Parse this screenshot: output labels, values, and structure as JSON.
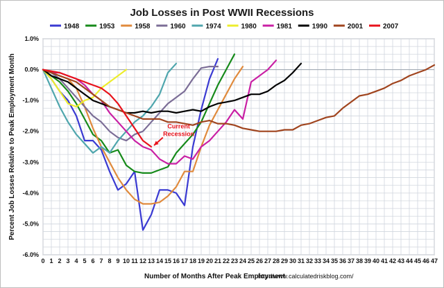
{
  "chart_data": {
    "type": "line",
    "title": "Job Losses in Post WWII Recessions",
    "xlabel": "Number of Months After Peak Employment",
    "ylabel": "Percent Job Losses Relative to Peak Employment Month",
    "source": "http://www.calculatedriskblog.com/",
    "annotation": "Current Recession",
    "annotation_lines": [
      "Current",
      "Recession"
    ],
    "xlim": [
      0,
      47
    ],
    "ylim": [
      -6.0,
      1.0
    ],
    "x_ticks": [
      "0",
      "1",
      "2",
      "3",
      "4",
      "5",
      "6",
      "7",
      "8",
      "9",
      "10",
      "11",
      "12",
      "13",
      "14",
      "15",
      "16",
      "17",
      "18",
      "19",
      "20",
      "21",
      "22",
      "23",
      "24",
      "25",
      "26",
      "27",
      "28",
      "29",
      "30",
      "31",
      "32",
      "33",
      "34",
      "35",
      "36",
      "37",
      "38",
      "39",
      "40",
      "41",
      "42",
      "43",
      "44",
      "45",
      "46",
      "47"
    ],
    "y_ticks": [
      "1.0%",
      "0.0%",
      "-1.0%",
      "-2.0%",
      "-3.0%",
      "-4.0%",
      "-5.0%",
      "-6.0%"
    ],
    "y_tick_values": [
      1.0,
      0.0,
      -1.0,
      -2.0,
      -3.0,
      -4.0,
      -5.0,
      -6.0
    ],
    "grid": true,
    "legend_position": "top",
    "series": [
      {
        "name": "1948",
        "color": "#3a3ad2",
        "x": [
          0,
          1,
          2,
          3,
          4,
          5,
          6,
          7,
          8,
          9,
          10,
          11,
          12,
          13,
          14,
          15,
          16,
          17,
          18,
          19,
          20,
          21
        ],
        "values": [
          0,
          -0.3,
          -0.7,
          -1.0,
          -1.5,
          -2.3,
          -2.3,
          -2.6,
          -3.3,
          -3.9,
          -3.7,
          -3.3,
          -5.2,
          -4.7,
          -3.9,
          -3.9,
          -4.0,
          -4.4,
          -2.5,
          -1.3,
          -0.3,
          0.35
        ]
      },
      {
        "name": "1953",
        "color": "#168a1a",
        "x": [
          0,
          1,
          2,
          3,
          4,
          5,
          6,
          7,
          8,
          9,
          10,
          11,
          12,
          13,
          14,
          15,
          16,
          17,
          18,
          19,
          20,
          21,
          22,
          23
        ],
        "values": [
          0,
          -0.2,
          -0.4,
          -0.7,
          -1.1,
          -1.6,
          -2.1,
          -2.3,
          -2.7,
          -2.6,
          -3.1,
          -3.3,
          -3.35,
          -3.35,
          -3.25,
          -3.15,
          -2.7,
          -2.4,
          -2.1,
          -1.7,
          -1.1,
          -0.5,
          0.0,
          0.5
        ]
      },
      {
        "name": "1958",
        "color": "#e08a3c",
        "x": [
          0,
          1,
          2,
          3,
          4,
          5,
          6,
          7,
          8,
          9,
          10,
          11,
          12,
          13,
          14,
          15,
          16,
          17,
          18,
          19,
          20,
          21,
          22,
          23,
          24
        ],
        "values": [
          0,
          -0.1,
          -0.2,
          -0.3,
          -0.6,
          -1.2,
          -1.9,
          -2.5,
          -3.0,
          -3.5,
          -3.9,
          -4.2,
          -4.35,
          -4.35,
          -4.3,
          -4.1,
          -3.8,
          -3.3,
          -3.3,
          -2.5,
          -1.8,
          -1.3,
          -0.8,
          -0.3,
          0.1
        ]
      },
      {
        "name": "1960",
        "color": "#7b6d96",
        "x": [
          0,
          1,
          2,
          3,
          4,
          5,
          6,
          7,
          8,
          9,
          10,
          11,
          12,
          13,
          14,
          15,
          16,
          17,
          18,
          19,
          20,
          21
        ],
        "values": [
          0,
          -0.1,
          -0.3,
          -0.6,
          -0.9,
          -1.2,
          -1.5,
          -1.7,
          -2.0,
          -2.2,
          -2.3,
          -2.1,
          -2.0,
          -1.7,
          -1.4,
          -1.1,
          -0.9,
          -0.7,
          -0.3,
          0.05,
          0.1,
          0.1
        ]
      },
      {
        "name": "1974",
        "color": "#4fa6ad",
        "x": [
          0,
          1,
          2,
          3,
          4,
          5,
          6,
          7,
          8,
          9,
          10,
          11,
          12,
          13,
          14,
          15,
          16
        ],
        "values": [
          0,
          -0.6,
          -1.2,
          -1.7,
          -2.1,
          -2.4,
          -2.7,
          -2.5,
          -2.7,
          -2.3,
          -2.0,
          -1.7,
          -1.5,
          -1.2,
          -0.8,
          -0.1,
          0.2
        ]
      },
      {
        "name": "1980",
        "color": "#eded2c",
        "x": [
          0,
          1,
          2,
          3,
          4,
          5,
          6,
          7,
          8,
          9,
          10
        ],
        "values": [
          0,
          -0.3,
          -0.7,
          -1.1,
          -1.2,
          -1.0,
          -0.9,
          -0.6,
          -0.4,
          -0.2,
          0.0
        ]
      },
      {
        "name": "1981",
        "color": "#c91fa4",
        "x": [
          0,
          1,
          2,
          3,
          4,
          5,
          6,
          7,
          8,
          9,
          10,
          11,
          12,
          13,
          14,
          15,
          16,
          17,
          18,
          19,
          20,
          21,
          22,
          23,
          24,
          25,
          26,
          27,
          28
        ],
        "values": [
          0,
          -0.1,
          -0.1,
          -0.2,
          -0.3,
          -0.5,
          -0.8,
          -1.0,
          -1.4,
          -1.7,
          -2.0,
          -2.3,
          -2.5,
          -2.6,
          -2.9,
          -3.05,
          -3.05,
          -2.8,
          -2.9,
          -2.5,
          -2.3,
          -2.0,
          -1.7,
          -1.3,
          -1.6,
          -0.4,
          -0.2,
          0.0,
          0.3
        ]
      },
      {
        "name": "1990",
        "color": "#000000",
        "x": [
          0,
          1,
          2,
          3,
          4,
          5,
          6,
          7,
          8,
          9,
          10,
          11,
          12,
          13,
          14,
          15,
          16,
          17,
          18,
          19,
          20,
          21,
          22,
          23,
          24,
          25,
          26,
          27,
          28,
          29,
          30,
          31
        ],
        "values": [
          0,
          -0.2,
          -0.3,
          -0.4,
          -0.6,
          -0.8,
          -1.0,
          -1.1,
          -1.2,
          -1.3,
          -1.4,
          -1.4,
          -1.35,
          -1.4,
          -1.35,
          -1.35,
          -1.4,
          -1.35,
          -1.3,
          -1.35,
          -1.2,
          -1.1,
          -1.05,
          -1.0,
          -0.9,
          -0.8,
          -0.8,
          -0.7,
          -0.5,
          -0.35,
          -0.1,
          0.2
        ]
      },
      {
        "name": "2001",
        "color": "#a0441e",
        "x": [
          0,
          1,
          2,
          3,
          4,
          5,
          6,
          7,
          8,
          9,
          10,
          11,
          12,
          13,
          14,
          15,
          16,
          17,
          18,
          19,
          20,
          21,
          22,
          23,
          24,
          25,
          26,
          27,
          28,
          29,
          30,
          31,
          32,
          33,
          34,
          35,
          36,
          37,
          38,
          39,
          40,
          41,
          42,
          43,
          44,
          45,
          46,
          47
        ],
        "values": [
          0,
          -0.1,
          -0.2,
          -0.3,
          -0.4,
          -0.6,
          -0.8,
          -1.0,
          -1.2,
          -1.3,
          -1.4,
          -1.5,
          -1.6,
          -1.6,
          -1.6,
          -1.7,
          -1.7,
          -1.75,
          -1.8,
          -1.7,
          -1.65,
          -1.75,
          -1.75,
          -1.8,
          -1.9,
          -1.95,
          -2.0,
          -2.0,
          -2.0,
          -1.95,
          -1.95,
          -1.8,
          -1.75,
          -1.65,
          -1.55,
          -1.5,
          -1.25,
          -1.05,
          -0.85,
          -0.8,
          -0.7,
          -0.6,
          -0.45,
          -0.35,
          -0.2,
          -0.1,
          0.0,
          0.15
        ]
      },
      {
        "name": "2007",
        "color": "#e8121b",
        "x": [
          0,
          1,
          2,
          3,
          4,
          5,
          6,
          7,
          8,
          9,
          10,
          11,
          12,
          13
        ],
        "values": [
          0,
          -0.05,
          -0.1,
          -0.2,
          -0.3,
          -0.4,
          -0.5,
          -0.6,
          -0.8,
          -1.1,
          -1.5,
          -1.9,
          -2.3,
          -2.5
        ]
      }
    ]
  }
}
